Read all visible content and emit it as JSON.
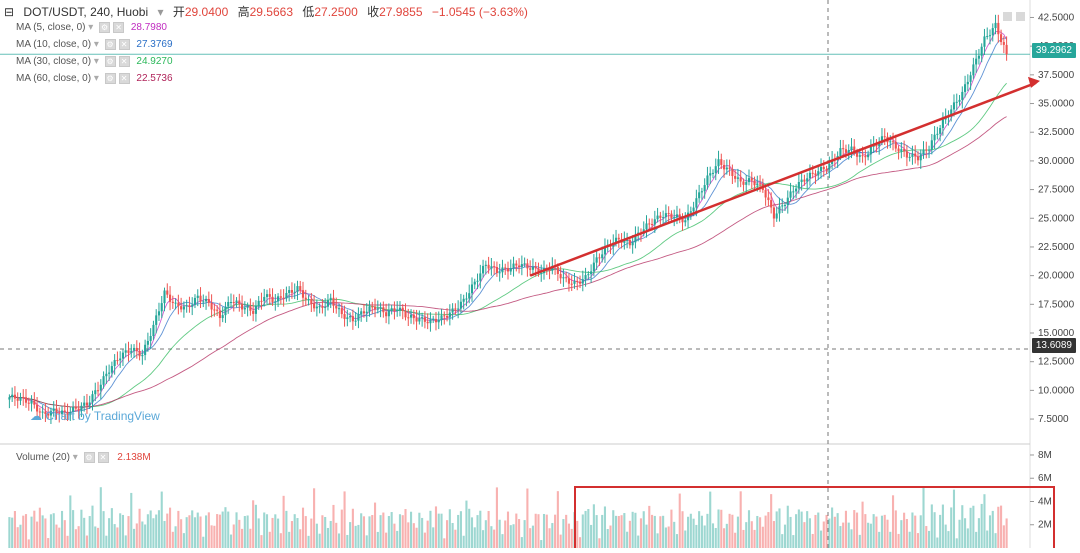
{
  "header": {
    "symbol": "DOT/USDT, 240, Huobi",
    "open_label": "开",
    "open": "29.0400",
    "high_label": "高",
    "high": "29.5663",
    "low_label": "低",
    "low": "27.2500",
    "close_label": "收",
    "close": "27.9855",
    "change": "−1.0545 (−3.63%)"
  },
  "ma": [
    {
      "label": "MA (5, close, 0)",
      "value": "28.7980",
      "color": "#c02bc0"
    },
    {
      "label": "MA (10, close, 0)",
      "value": "27.3769",
      "color": "#2a6fc7"
    },
    {
      "label": "MA (30, close, 0)",
      "value": "24.9270",
      "color": "#2bb85a"
    },
    {
      "label": "MA (60, close, 0)",
      "value": "22.5736",
      "color": "#b0245a"
    }
  ],
  "volume": {
    "label": "Volume (20)",
    "value": "2.138M"
  },
  "watermark": "Chart by TradingView",
  "colors": {
    "up": "#26a69a",
    "down": "#ef5350",
    "trend": "#d32f2f",
    "last_price_tag": "#26a69a",
    "crosshair_tag": "#333333"
  },
  "chart_data": {
    "type": "candlestick",
    "y_ticks": [
      "42.5000",
      "40.0000",
      "37.5000",
      "35.0000",
      "32.5000",
      "30.0000",
      "27.5000",
      "25.0000",
      "22.5000",
      "20.0000",
      "17.5000",
      "15.0000",
      "12.5000",
      "10.0000",
      "7.5000"
    ],
    "ylim": [
      5.5,
      43.5
    ],
    "volume_ticks": [
      "8M",
      "6M",
      "4M",
      "2M"
    ],
    "volume_ylim": [
      0,
      8.6
    ],
    "last_price": "39.2962",
    "crosshair_price": "13.6089",
    "close_path": [
      9.4,
      9.3,
      8.9,
      7.9,
      8.2,
      8.0,
      8.4,
      8.8,
      10.2,
      11.8,
      13.0,
      13.6,
      13.1,
      15.6,
      18.5,
      17.4,
      17.2,
      18.1,
      17.6,
      16.4,
      17.9,
      17.3,
      16.9,
      18.3,
      17.8,
      18.4,
      18.9,
      17.7,
      17.1,
      17.9,
      16.6,
      16.1,
      16.9,
      17.3,
      16.7,
      17.2,
      16.4,
      16.2,
      16.0,
      16.3,
      16.9,
      17.8,
      19.4,
      21.0,
      20.4,
      20.6,
      21.0,
      20.7,
      20.3,
      20.8,
      19.7,
      19.3,
      19.8,
      21.4,
      22.6,
      23.2,
      22.8,
      23.9,
      24.7,
      25.3,
      25.2,
      24.8,
      26.6,
      28.5,
      29.9,
      29.1,
      28.1,
      28.3,
      27.6,
      25.2,
      26.4,
      27.8,
      28.6,
      29.1,
      29.6,
      30.9,
      31.0,
      30.2,
      31.3,
      32.1,
      31.2,
      30.5,
      30.3,
      31.2,
      33.0,
      34.5,
      35.9,
      38.2,
      40.6,
      41.8,
      39.3
    ],
    "ma5_end": "28.7980",
    "ma10_end": "27.3769",
    "ma30_end": "24.9270",
    "ma60_end": "22.5736",
    "trendline": {
      "from": {
        "bar": 47,
        "price": 20.0
      },
      "to": {
        "bar": 90,
        "price": 36.8
      }
    }
  }
}
